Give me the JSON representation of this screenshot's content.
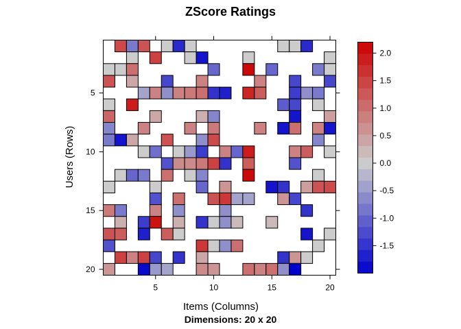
{
  "chart_data": {
    "type": "heatmap",
    "title": "ZScore Ratings",
    "subtitle": "Dimensions: 20 x 20",
    "xlabel": "Items (Columns)",
    "ylabel": "Users (Rows)",
    "x_ticks": [
      5,
      10,
      15,
      20
    ],
    "y_ticks": [
      5,
      10,
      15,
      20
    ],
    "rows": 20,
    "columns": 20,
    "value_range": [
      -2.0,
      2.2
    ],
    "colorbar_ticks": [
      "2.0",
      "1.5",
      "1.0",
      "0.5",
      "0.0",
      "-0.5",
      "-1.0",
      "-1.5"
    ],
    "colorbar_tick_values": [
      2.0,
      1.5,
      1.0,
      0.5,
      0.0,
      -0.5,
      -1.0,
      -1.5
    ],
    "colors": {
      "low": "#0000cc",
      "mid": "#cccccc",
      "high": "#cc0000"
    },
    "cells": [
      [
        1,
        2,
        1.4
      ],
      [
        1,
        3,
        -0.8
      ],
      [
        1,
        4,
        1.3
      ],
      [
        1,
        6,
        0.0
      ],
      [
        1,
        7,
        -1.6
      ],
      [
        1,
        8,
        0.0
      ],
      [
        1,
        16,
        0.0
      ],
      [
        1,
        17,
        0.0
      ],
      [
        1,
        18,
        -1.6
      ],
      [
        2,
        3,
        0.0
      ],
      [
        2,
        5,
        1.5
      ],
      [
        2,
        8,
        0.0
      ],
      [
        2,
        9,
        -1.8
      ],
      [
        2,
        13,
        0.0
      ],
      [
        2,
        20,
        0.0
      ],
      [
        3,
        1,
        0.0
      ],
      [
        3,
        2,
        0.0
      ],
      [
        3,
        3,
        1.0
      ],
      [
        3,
        10,
        -1.0
      ],
      [
        3,
        13,
        2.1
      ],
      [
        3,
        15,
        -1.0
      ],
      [
        3,
        19,
        -0.8
      ],
      [
        3,
        20,
        0.0
      ],
      [
        4,
        1,
        1.3
      ],
      [
        4,
        3,
        0.4
      ],
      [
        4,
        6,
        -1.3
      ],
      [
        4,
        9,
        0.8
      ],
      [
        4,
        14,
        0.8
      ],
      [
        4,
        17,
        -1.3
      ],
      [
        4,
        20,
        -1.3
      ],
      [
        5,
        4,
        -0.4
      ],
      [
        5,
        5,
        0.8
      ],
      [
        5,
        6,
        -0.6
      ],
      [
        5,
        7,
        0.8
      ],
      [
        5,
        8,
        0.9
      ],
      [
        5,
        9,
        1.0
      ],
      [
        5,
        10,
        -1.5
      ],
      [
        5,
        11,
        -1.7
      ],
      [
        5,
        13,
        1.8
      ],
      [
        5,
        14,
        1.2
      ],
      [
        5,
        17,
        -1.4
      ],
      [
        5,
        18,
        -0.6
      ],
      [
        5,
        19,
        -0.8
      ],
      [
        6,
        1,
        0.0
      ],
      [
        6,
        3,
        1.9
      ],
      [
        6,
        16,
        -1.1
      ],
      [
        6,
        17,
        -1.3
      ],
      [
        6,
        19,
        0.0
      ],
      [
        7,
        1,
        1.1
      ],
      [
        7,
        5,
        0.4
      ],
      [
        7,
        9,
        0.3
      ],
      [
        7,
        10,
        -0.7
      ],
      [
        7,
        17,
        -1.8
      ],
      [
        7,
        20,
        0.5
      ],
      [
        8,
        1,
        -0.7
      ],
      [
        8,
        4,
        0.8
      ],
      [
        8,
        8,
        0.8
      ],
      [
        8,
        10,
        0.9
      ],
      [
        8,
        14,
        0.8
      ],
      [
        8,
        16,
        -1.8
      ],
      [
        8,
        17,
        1.0
      ],
      [
        8,
        19,
        0.8
      ],
      [
        8,
        20,
        -1.8
      ],
      [
        9,
        1,
        -0.8
      ],
      [
        9,
        2,
        -1.8
      ],
      [
        9,
        3,
        0.4
      ],
      [
        9,
        6,
        1.3
      ],
      [
        9,
        9,
        -0.6
      ],
      [
        9,
        10,
        1.4
      ],
      [
        9,
        19,
        -0.7
      ],
      [
        10,
        4,
        0.0
      ],
      [
        10,
        5,
        -0.9
      ],
      [
        10,
        7,
        0.0
      ],
      [
        10,
        8,
        -0.5
      ],
      [
        10,
        9,
        -1.4
      ],
      [
        10,
        11,
        0.8
      ],
      [
        10,
        12,
        -1.0
      ],
      [
        10,
        13,
        1.9
      ],
      [
        10,
        17,
        0.8
      ],
      [
        10,
        18,
        1.2
      ],
      [
        10,
        20,
        0.0
      ],
      [
        11,
        6,
        -1.2
      ],
      [
        11,
        7,
        0.7
      ],
      [
        11,
        8,
        0.7
      ],
      [
        11,
        9,
        0.9
      ],
      [
        11,
        10,
        1.5
      ],
      [
        11,
        11,
        -1.5
      ],
      [
        11,
        13,
        1.2
      ],
      [
        11,
        17,
        -1.2
      ],
      [
        12,
        2,
        0.0
      ],
      [
        12,
        3,
        -1.0
      ],
      [
        12,
        4,
        -0.8
      ],
      [
        12,
        6,
        1.0
      ],
      [
        12,
        8,
        0.0
      ],
      [
        12,
        9,
        -0.7
      ],
      [
        12,
        13,
        2.1
      ],
      [
        12,
        19,
        0.0
      ],
      [
        13,
        1,
        0.0
      ],
      [
        13,
        5,
        0.0
      ],
      [
        13,
        9,
        -1.0
      ],
      [
        13,
        11,
        0.6
      ],
      [
        13,
        15,
        -1.8
      ],
      [
        13,
        16,
        -1.5
      ],
      [
        13,
        18,
        0.5
      ],
      [
        13,
        19,
        1.3
      ],
      [
        13,
        20,
        1.4
      ],
      [
        14,
        5,
        -1.2
      ],
      [
        14,
        7,
        1.0
      ],
      [
        14,
        10,
        1.3
      ],
      [
        14,
        11,
        1.6
      ],
      [
        14,
        12,
        -0.4
      ],
      [
        14,
        13,
        -0.4
      ],
      [
        14,
        16,
        0.6
      ],
      [
        14,
        17,
        -1.3
      ],
      [
        15,
        1,
        0.9
      ],
      [
        15,
        2,
        -0.8
      ],
      [
        15,
        5,
        0.8
      ],
      [
        15,
        7,
        -0.6
      ],
      [
        15,
        11,
        -0.6
      ],
      [
        15,
        18,
        -1.5
      ],
      [
        16,
        2,
        0.3
      ],
      [
        16,
        4,
        -1.4
      ],
      [
        16,
        5,
        2.0
      ],
      [
        16,
        7,
        0.3
      ],
      [
        16,
        9,
        -1.5
      ],
      [
        16,
        10,
        0.0
      ],
      [
        16,
        11,
        -0.6
      ],
      [
        16,
        12,
        0.2
      ],
      [
        16,
        15,
        0.2
      ],
      [
        17,
        1,
        1.3
      ],
      [
        17,
        2,
        1.2
      ],
      [
        17,
        4,
        -1.7
      ],
      [
        17,
        6,
        1.2
      ],
      [
        17,
        7,
        0.0
      ],
      [
        17,
        18,
        -1.8
      ],
      [
        17,
        20,
        0.0
      ],
      [
        18,
        1,
        -1.2
      ],
      [
        18,
        9,
        1.6
      ],
      [
        18,
        10,
        0.0
      ],
      [
        18,
        11,
        -0.6
      ],
      [
        18,
        12,
        1.0
      ],
      [
        18,
        19,
        0.0
      ],
      [
        19,
        2,
        1.5
      ],
      [
        19,
        3,
        0.8
      ],
      [
        19,
        4,
        1.5
      ],
      [
        19,
        5,
        -1.3
      ],
      [
        19,
        7,
        -1.5
      ],
      [
        19,
        9,
        0.4
      ],
      [
        19,
        16,
        -1.5
      ],
      [
        19,
        17,
        0.6
      ],
      [
        19,
        18,
        0.0
      ],
      [
        20,
        1,
        0.6
      ],
      [
        20,
        4,
        -1.9
      ],
      [
        20,
        5,
        -0.5
      ],
      [
        20,
        6,
        -0.4
      ],
      [
        20,
        9,
        0.7
      ],
      [
        20,
        10,
        0.6
      ],
      [
        20,
        13,
        1.0
      ],
      [
        20,
        14,
        0.8
      ],
      [
        20,
        15,
        1.0
      ],
      [
        20,
        16,
        -0.6
      ],
      [
        20,
        17,
        -2.0
      ]
    ]
  }
}
